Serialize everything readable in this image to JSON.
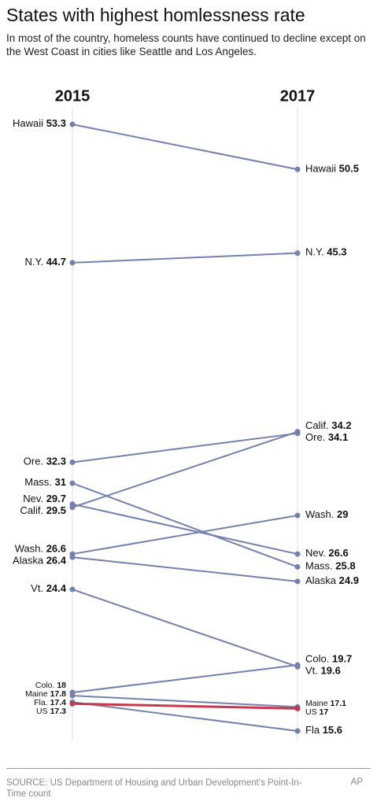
{
  "chart_data": {
    "type": "slope",
    "title": "States with highest homlessness rate",
    "subtitle": "In most of the country, homeless counts have continued to decline except on the West Coast in cities like Seattle and Los Angeles.",
    "x": [
      "2015",
      "2017"
    ],
    "ylim": [
      15,
      54
    ],
    "series": [
      {
        "labels": [
          "Hawaii",
          "Hawaii"
        ],
        "values": [
          53.3,
          50.5
        ],
        "color": "#7480ae"
      },
      {
        "labels": [
          "N.Y.",
          "N.Y."
        ],
        "values": [
          44.7,
          45.3
        ],
        "color": "#7480ae"
      },
      {
        "labels": [
          "Ore.",
          "Ore."
        ],
        "values": [
          32.3,
          34.1
        ],
        "color": "#7480ae"
      },
      {
        "labels": [
          "Mass.",
          "Mass."
        ],
        "values": [
          31,
          25.8
        ],
        "color": "#7480ae"
      },
      {
        "labels": [
          "Nev.",
          "Nev."
        ],
        "values": [
          29.7,
          26.6
        ],
        "color": "#7480ae"
      },
      {
        "labels": [
          "Calif.",
          "Calif."
        ],
        "values": [
          29.5,
          34.2
        ],
        "color": "#7480ae"
      },
      {
        "labels": [
          "Wash.",
          "Wash."
        ],
        "values": [
          26.6,
          29
        ],
        "color": "#7480ae"
      },
      {
        "labels": [
          "Alaska",
          "Alaska"
        ],
        "values": [
          26.4,
          24.9
        ],
        "color": "#7480ae"
      },
      {
        "labels": [
          "Vt.",
          "Vt."
        ],
        "values": [
          24.4,
          19.6
        ],
        "color": "#7480ae"
      },
      {
        "labels": [
          "Colo.",
          "Colo."
        ],
        "values": [
          18,
          19.7
        ],
        "color": "#7480ae"
      },
      {
        "labels": [
          "Maine",
          "Maine"
        ],
        "values": [
          17.8,
          17.1
        ],
        "color": "#7480ae"
      },
      {
        "labels": [
          "Fla.",
          "Fla"
        ],
        "values": [
          17.4,
          15.6
        ],
        "color": "#7480ae"
      },
      {
        "labels": [
          "US",
          "US"
        ],
        "values": [
          17.3,
          17
        ],
        "color": "#c8384c"
      }
    ],
    "source": "SOURCE: US Department of Housing and Urban Development's Point-In-Time count",
    "credit": "AP"
  }
}
